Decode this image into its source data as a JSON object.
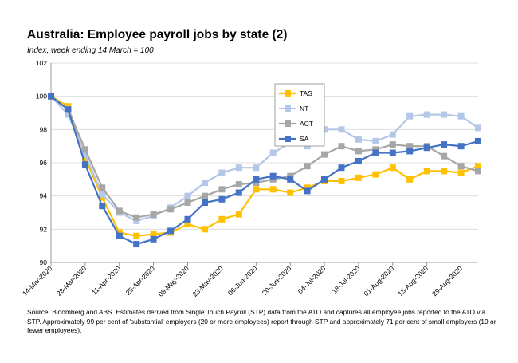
{
  "title": "Australia:  Employee payroll jobs by state (2)",
  "subtitle": "Index, week ending 14 March = 100",
  "source": "Source: Bloomberg and ABS.  Estimates derived from Single Touch Payroll (STP) data from the ATO and captures all employee jobs reported to the ATO via STP.  Approximately 99 per cent of 'substantial' employers (20 or more employees) report through STP and approximately 71 per cent of small employers (19 or fewer employees).",
  "chart_data": {
    "type": "line",
    "title": "Australia:  Employee payroll jobs by state (2)",
    "subtitle": "Index, week ending 14 March = 100",
    "xlabel": "",
    "ylabel": "",
    "ylim": [
      90,
      102
    ],
    "yticks": [
      "90",
      "92",
      "94",
      "96",
      "98",
      "100",
      "102"
    ],
    "grid": "horizontal",
    "legend_position": "inside-upper-middle",
    "x": [
      "14-Mar-2020",
      "21-Mar-2020",
      "28-Mar-2020",
      "04-Apr-2020",
      "11-Apr-2020",
      "18-Apr-2020",
      "25-Apr-2020",
      "02-May-2020",
      "09-May-2020",
      "16-May-2020",
      "23-May-2020",
      "30-May-2020",
      "06-Jun-2020",
      "13-Jun-2020",
      "20-Jun-2020",
      "27-Jun-2020",
      "04-Jul-2020",
      "11-Jul-2020",
      "18-Jul-2020",
      "25-Jul-2020",
      "01-Aug-2020",
      "08-Aug-2020",
      "15-Aug-2020",
      "22-Aug-2020",
      "29-Aug-2020",
      "05-Sep-2020"
    ],
    "x_tick_labels": [
      "14-Mar-2020",
      "28-Mar-2020",
      "11-Apr-2020",
      "25-Apr-2020",
      "09-May-2020",
      "23-May-2020",
      "06-Jun-2020",
      "20-Jun-2020",
      "04-Jul-2020",
      "18-Jul-2020",
      "01-Aug-2020",
      "15-Aug-2020",
      "29-Aug-2020"
    ],
    "series": [
      {
        "name": "TAS",
        "color": "#FFC000",
        "values": [
          100,
          99.4,
          96.3,
          93.9,
          91.8,
          91.6,
          91.7,
          91.8,
          92.3,
          92.0,
          92.6,
          92.9,
          94.4,
          94.4,
          94.2,
          94.5,
          94.9,
          94.9,
          95.1,
          95.3,
          95.7,
          95.0,
          95.5,
          95.5,
          95.4,
          95.8
        ]
      },
      {
        "name": "NT",
        "color": "#B4C7E7",
        "values": [
          100,
          98.9,
          96.5,
          94.1,
          93.0,
          92.5,
          92.8,
          93.3,
          94.0,
          94.8,
          95.4,
          95.7,
          95.7,
          96.6,
          97.2,
          97.0,
          98.0,
          98.0,
          97.4,
          97.3,
          97.7,
          98.8,
          98.9,
          98.9,
          98.8,
          98.1
        ]
      },
      {
        "name": "ACT",
        "color": "#A6A6A6",
        "values": [
          100,
          99.2,
          96.8,
          94.5,
          93.1,
          92.7,
          92.9,
          93.2,
          93.6,
          94.0,
          94.4,
          94.7,
          94.8,
          95.0,
          95.2,
          95.8,
          96.5,
          97.0,
          96.7,
          96.8,
          97.1,
          97.0,
          97.0,
          96.4,
          95.8,
          95.5
        ]
      },
      {
        "name": "SA",
        "color": "#4472C4",
        "values": [
          100,
          99.2,
          95.9,
          93.4,
          91.6,
          91.1,
          91.4,
          91.9,
          92.6,
          93.6,
          93.8,
          94.2,
          95.0,
          95.2,
          95.0,
          94.3,
          95.0,
          95.7,
          96.1,
          96.6,
          96.6,
          96.7,
          96.9,
          97.1,
          97.0,
          97.3
        ]
      }
    ]
  }
}
